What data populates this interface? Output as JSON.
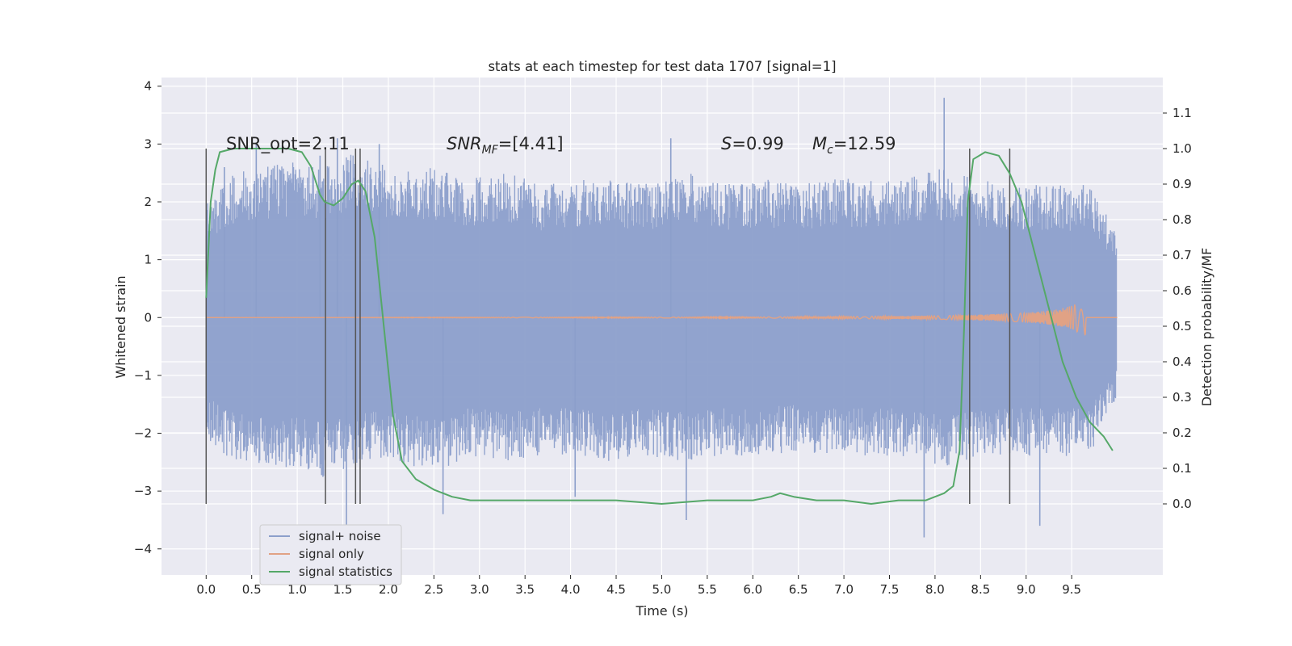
{
  "chart_data": {
    "type": "line",
    "title": "stats at each timestep for test data 1707 [signal=1]",
    "xlabel": "Time (s)",
    "ylabel": "Whitened strain",
    "ylabel_right": "Detection probability/MF",
    "xlim": [
      -0.49,
      10.5
    ],
    "ylim": [
      -4.45,
      4.15
    ],
    "ylim_right": [
      -0.2,
      1.2
    ],
    "x_ticks": [
      0.0,
      0.5,
      1.0,
      1.5,
      2.0,
      2.5,
      3.0,
      3.5,
      4.0,
      4.5,
      5.0,
      5.5,
      6.0,
      6.5,
      7.0,
      7.5,
      8.0,
      8.5,
      9.0,
      9.5
    ],
    "x_tick_labels": [
      "0.0",
      "0.5",
      "1.0",
      "1.5",
      "2.0",
      "2.5",
      "3.0",
      "3.5",
      "4.0",
      "4.5",
      "5.0",
      "5.5",
      "6.0",
      "6.5",
      "7.0",
      "7.5",
      "8.0",
      "8.5",
      "9.0",
      "9.5"
    ],
    "y_ticks": [
      -4,
      -3,
      -2,
      -1,
      0,
      1,
      2,
      3,
      4
    ],
    "y_tick_labels": [
      "−4",
      "−3",
      "−2",
      "−1",
      "0",
      "1",
      "2",
      "3",
      "4"
    ],
    "y_right_ticks": [
      0.0,
      0.1,
      0.2,
      0.3,
      0.4,
      0.5,
      0.6,
      0.7,
      0.8,
      0.9,
      1.0,
      1.1
    ],
    "y_right_tick_labels": [
      "0.0",
      "0.1",
      "0.2",
      "0.3",
      "0.4",
      "0.5",
      "0.6",
      "0.7",
      "0.8",
      "0.9",
      "1.0",
      "1.1"
    ],
    "grid": true,
    "legend_position": "lower-left",
    "annotations": [
      {
        "pre": "SNR_opt=2.11",
        "italic": "",
        "sub": "",
        "post": ""
      },
      {
        "pre": "",
        "italic": "SNR",
        "sub": "MF",
        "post": "=[4.41]"
      },
      {
        "pre": "",
        "italic": "S",
        "sub": "",
        "post": "=0.99"
      },
      {
        "pre": "",
        "italic": "M",
        "sub": "c",
        "post": "=12.59"
      }
    ],
    "vertical_markers": [
      0.0,
      1.31,
      1.64,
      1.69,
      8.38,
      8.82
    ],
    "series": [
      {
        "name": "signal+ noise",
        "color": "#8c9fcb",
        "axis": "left",
        "x_range": [
          0.0,
          9.99
        ],
        "upper_envelope": [
          [
            0.0,
            2.0
          ],
          [
            0.3,
            2.5
          ],
          [
            0.6,
            2.6
          ],
          [
            1.0,
            2.7
          ],
          [
            1.3,
            2.6
          ],
          [
            1.7,
            2.9
          ],
          [
            2.1,
            2.5
          ],
          [
            2.5,
            2.6
          ],
          [
            2.9,
            2.4
          ],
          [
            3.3,
            2.5
          ],
          [
            3.7,
            2.3
          ],
          [
            4.1,
            2.4
          ],
          [
            4.5,
            2.4
          ],
          [
            4.9,
            2.3
          ],
          [
            5.3,
            2.5
          ],
          [
            5.7,
            2.3
          ],
          [
            6.1,
            2.4
          ],
          [
            6.5,
            2.3
          ],
          [
            6.9,
            2.4
          ],
          [
            7.3,
            2.4
          ],
          [
            7.7,
            2.4
          ],
          [
            8.1,
            2.6
          ],
          [
            8.5,
            2.4
          ],
          [
            8.9,
            2.3
          ],
          [
            9.3,
            2.3
          ],
          [
            9.7,
            2.3
          ],
          [
            9.99,
            1.5
          ]
        ],
        "lower_envelope": [
          [
            0.0,
            -2.1
          ],
          [
            0.3,
            -2.5
          ],
          [
            0.6,
            -2.6
          ],
          [
            1.0,
            -2.6
          ],
          [
            1.3,
            -2.8
          ],
          [
            1.7,
            -2.5
          ],
          [
            2.1,
            -2.5
          ],
          [
            2.5,
            -2.7
          ],
          [
            2.9,
            -2.4
          ],
          [
            3.3,
            -2.5
          ],
          [
            3.7,
            -2.4
          ],
          [
            4.1,
            -2.4
          ],
          [
            4.5,
            -2.5
          ],
          [
            4.9,
            -2.4
          ],
          [
            5.3,
            -2.5
          ],
          [
            5.7,
            -2.4
          ],
          [
            6.1,
            -2.4
          ],
          [
            6.5,
            -2.3
          ],
          [
            6.9,
            -2.4
          ],
          [
            7.3,
            -2.4
          ],
          [
            7.7,
            -2.4
          ],
          [
            8.1,
            -2.6
          ],
          [
            8.5,
            -2.4
          ],
          [
            8.9,
            -2.4
          ],
          [
            9.3,
            -2.4
          ],
          [
            9.7,
            -2.4
          ],
          [
            9.99,
            -1.4
          ]
        ],
        "notable_peaks": [
          [
            0.2,
            2.6
          ],
          [
            0.55,
            3.0
          ],
          [
            1.25,
            2.8
          ],
          [
            1.44,
            3.1
          ],
          [
            1.54,
            -3.6
          ],
          [
            1.9,
            3.0
          ],
          [
            2.6,
            -3.4
          ],
          [
            4.05,
            -3.1
          ],
          [
            5.1,
            3.1
          ],
          [
            5.27,
            -3.5
          ],
          [
            7.88,
            -3.8
          ],
          [
            8.1,
            3.8
          ],
          [
            9.15,
            -3.6
          ]
        ]
      },
      {
        "name": "signal only",
        "color": "#e1a285",
        "axis": "left",
        "envelope": [
          [
            0.0,
            0.0
          ],
          [
            6.0,
            0.01
          ],
          [
            7.0,
            0.02
          ],
          [
            8.0,
            0.03
          ],
          [
            8.5,
            0.05
          ],
          [
            9.0,
            0.08
          ],
          [
            9.3,
            0.13
          ],
          [
            9.5,
            0.2
          ],
          [
            9.6,
            0.28
          ],
          [
            9.65,
            0.3
          ],
          [
            9.66,
            0.0
          ],
          [
            10.0,
            0.0
          ]
        ]
      },
      {
        "name": "signal statistics",
        "color": "#55a868",
        "axis": "right",
        "points": [
          [
            0.0,
            0.58
          ],
          [
            0.05,
            0.85
          ],
          [
            0.1,
            0.94
          ],
          [
            0.15,
            0.99
          ],
          [
            0.3,
            1.0
          ],
          [
            0.9,
            1.0
          ],
          [
            1.05,
            0.99
          ],
          [
            1.15,
            0.95
          ],
          [
            1.25,
            0.87
          ],
          [
            1.3,
            0.85
          ],
          [
            1.4,
            0.84
          ],
          [
            1.5,
            0.86
          ],
          [
            1.6,
            0.9
          ],
          [
            1.67,
            0.91
          ],
          [
            1.75,
            0.88
          ],
          [
            1.85,
            0.75
          ],
          [
            1.95,
            0.5
          ],
          [
            2.05,
            0.25
          ],
          [
            2.15,
            0.12
          ],
          [
            2.3,
            0.07
          ],
          [
            2.5,
            0.04
          ],
          [
            2.7,
            0.02
          ],
          [
            2.9,
            0.01
          ],
          [
            3.1,
            0.01
          ],
          [
            3.5,
            0.01
          ],
          [
            4.0,
            0.01
          ],
          [
            4.5,
            0.01
          ],
          [
            5.0,
            0.0
          ],
          [
            5.5,
            0.01
          ],
          [
            6.0,
            0.01
          ],
          [
            6.2,
            0.02
          ],
          [
            6.3,
            0.03
          ],
          [
            6.45,
            0.02
          ],
          [
            6.7,
            0.01
          ],
          [
            7.0,
            0.01
          ],
          [
            7.3,
            0.0
          ],
          [
            7.6,
            0.01
          ],
          [
            7.9,
            0.01
          ],
          [
            8.1,
            0.03
          ],
          [
            8.2,
            0.05
          ],
          [
            8.27,
            0.15
          ],
          [
            8.32,
            0.5
          ],
          [
            8.36,
            0.85
          ],
          [
            8.42,
            0.97
          ],
          [
            8.55,
            0.99
          ],
          [
            8.7,
            0.98
          ],
          [
            8.82,
            0.93
          ],
          [
            8.95,
            0.85
          ],
          [
            9.1,
            0.7
          ],
          [
            9.25,
            0.55
          ],
          [
            9.4,
            0.4
          ],
          [
            9.55,
            0.3
          ],
          [
            9.7,
            0.23
          ],
          [
            9.85,
            0.19
          ],
          [
            9.95,
            0.15
          ]
        ]
      }
    ]
  }
}
